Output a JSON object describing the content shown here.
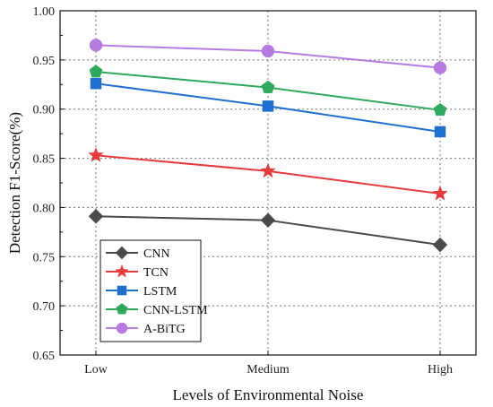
{
  "chart_data": {
    "type": "line",
    "categories": [
      "Low",
      "Medium",
      "High"
    ],
    "xlabel": "Levels of Environmental Noise",
    "ylabel": "Detection F1-Score(%)",
    "ylim": [
      0.65,
      1.0
    ],
    "yticks": [
      "0.65",
      "0.70",
      "0.75",
      "0.80",
      "0.85",
      "0.90",
      "0.95",
      "1.00"
    ],
    "grid": true,
    "legend_position": "bottom-left",
    "series": [
      {
        "name": "CNN",
        "values": [
          0.791,
          0.787,
          0.762
        ],
        "color": "#4a4a4a",
        "marker": "diamond"
      },
      {
        "name": "TCN",
        "values": [
          0.853,
          0.837,
          0.814
        ],
        "color": "#e83a3a",
        "marker": "star"
      },
      {
        "name": "LSTM",
        "values": [
          0.926,
          0.903,
          0.877
        ],
        "color": "#1f6fd1",
        "marker": "square"
      },
      {
        "name": "CNN-LSTM",
        "values": [
          0.938,
          0.922,
          0.899
        ],
        "color": "#2eaa5c",
        "marker": "pentagon"
      },
      {
        "name": "A-BiTG",
        "values": [
          0.965,
          0.959,
          0.942
        ],
        "color": "#b57be0",
        "marker": "circle"
      }
    ]
  }
}
